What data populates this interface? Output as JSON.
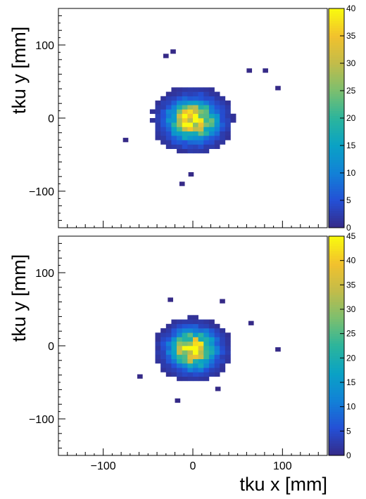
{
  "chart_data": [
    {
      "type": "heatmap",
      "title": "",
      "xlabel": "",
      "ylabel": "tku y [mm]",
      "xlim": [
        -150,
        150
      ],
      "ylim": [
        -150,
        150
      ],
      "xticks": [],
      "yticks": [
        {
          "v": 100,
          "label": "100"
        },
        {
          "v": 0,
          "label": "0"
        },
        {
          "v": -100,
          "label": "−100"
        }
      ],
      "zlim": [
        0,
        40
      ],
      "colorbar_ticks": [
        "0",
        "5",
        "10",
        "15",
        "20",
        "25",
        "30",
        "35",
        "40"
      ],
      "colormap": [
        "#352a87",
        "#2450d6",
        "#1281d7",
        "#0aa2c5",
        "#2bb59c",
        "#7bbf6f",
        "#c2bc4a",
        "#f2c12d",
        "#f9fb0e"
      ],
      "grid": false,
      "legend": "none",
      "seed": 11,
      "blob": {
        "center_x": 0,
        "center_y": -3,
        "sigma": 17,
        "peak": 40,
        "threshold": 1.0
      },
      "outliers": [
        [
          -78,
          -33
        ],
        [
          -25,
          88
        ],
        [
          -33,
          82
        ],
        [
          60,
          62
        ],
        [
          78,
          62
        ],
        [
          92,
          38
        ],
        [
          -15,
          -93
        ],
        [
          -5,
          -80
        ]
      ]
    },
    {
      "type": "heatmap",
      "title": "",
      "xlabel": "tku x [mm]",
      "ylabel": "tku y [mm]",
      "xlim": [
        -150,
        150
      ],
      "ylim": [
        -150,
        150
      ],
      "xticks": [
        {
          "v": -100,
          "label": "−100"
        },
        {
          "v": 0,
          "label": "0"
        },
        {
          "v": 100,
          "label": "100"
        }
      ],
      "yticks": [
        {
          "v": 100,
          "label": "100"
        },
        {
          "v": 0,
          "label": "0"
        },
        {
          "v": -100,
          "label": "−100"
        }
      ],
      "zlim": [
        0,
        45
      ],
      "colorbar_ticks": [
        "0",
        "5",
        "10",
        "15",
        "20",
        "25",
        "30",
        "35",
        "40",
        "45"
      ],
      "colormap": [
        "#352a87",
        "#2450d6",
        "#1281d7",
        "#0aa2c5",
        "#2bb59c",
        "#7bbf6f",
        "#c2bc4a",
        "#f2c12d",
        "#f9fb0e"
      ],
      "grid": false,
      "legend": "none",
      "seed": 29,
      "blob": {
        "center_x": 0,
        "center_y": -5,
        "sigma": 16,
        "peak": 45,
        "threshold": 1.0
      },
      "outliers": [
        [
          -62,
          -45
        ],
        [
          92,
          -8
        ],
        [
          62,
          28
        ],
        [
          -28,
          60
        ],
        [
          30,
          58
        ],
        [
          -20,
          -78
        ],
        [
          25,
          -62
        ]
      ]
    }
  ]
}
